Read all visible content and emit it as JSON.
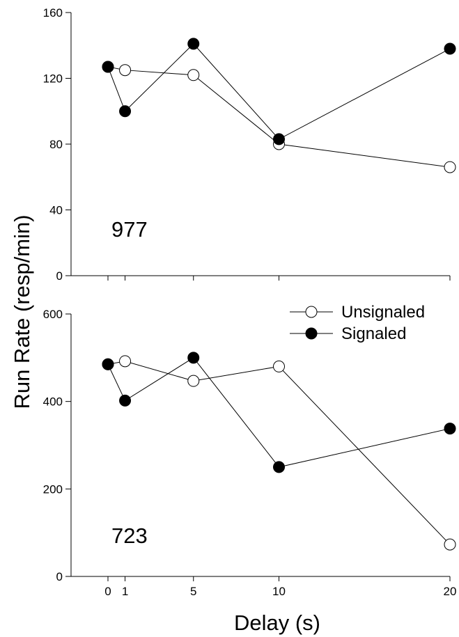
{
  "colors": {
    "open_marker_fill": "#ffffff",
    "filled_marker_fill": "#000000",
    "line": "#000000"
  },
  "chart_data": {
    "type": "line",
    "xlabel": "Delay (s)",
    "ylabel": "Run Rate (resp/min)",
    "x_ticks": [
      "0",
      "1",
      "5",
      "10",
      "20"
    ],
    "legend": {
      "placement": "top-right of lower panel",
      "entries": [
        "Unsignaled",
        "Signaled"
      ]
    },
    "panels": [
      {
        "label": "977",
        "ylim": [
          0,
          160
        ],
        "y_ticks": [
          "0",
          "40",
          "80",
          "120",
          "160"
        ],
        "series": [
          {
            "name": "Unsignaled",
            "marker": "open-circle",
            "x": [
              0,
              1,
              5,
              10,
              20
            ],
            "y": [
              127,
              125,
              122,
              80,
              66
            ]
          },
          {
            "name": "Signaled",
            "marker": "filled-circle",
            "x": [
              0,
              1,
              5,
              10,
              20
            ],
            "y": [
              127,
              100,
              141,
              83,
              138
            ]
          }
        ]
      },
      {
        "label": "723",
        "ylim": [
          0,
          600
        ],
        "y_ticks": [
          "0",
          "200",
          "400",
          "600"
        ],
        "series": [
          {
            "name": "Unsignaled",
            "marker": "open-circle",
            "x": [
              0,
              1,
              5,
              10,
              20
            ],
            "y": [
              485,
              492,
              447,
              480,
              73
            ]
          },
          {
            "name": "Signaled",
            "marker": "filled-circle",
            "x": [
              0,
              1,
              5,
              10,
              20
            ],
            "y": [
              485,
              402,
              500,
              250,
              338
            ]
          }
        ]
      }
    ]
  }
}
